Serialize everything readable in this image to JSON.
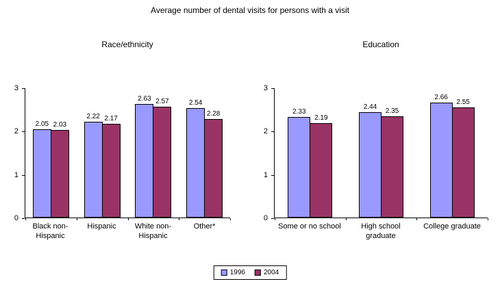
{
  "title": "Average number of dental visits for persons with a visit",
  "legend": {
    "entries": [
      {
        "label": "1996",
        "color": "#9999FF"
      },
      {
        "label": "2004",
        "color": "#993366"
      }
    ]
  },
  "chart_data": [
    {
      "type": "bar",
      "title": "Race/ethnicity",
      "categories": [
        "Black non-\nHispanic",
        "Hispanic",
        "White non-\nHispanic",
        "Other*"
      ],
      "series": [
        {
          "name": "1996",
          "color": "#9999FF",
          "values": [
            2.05,
            2.22,
            2.63,
            2.54
          ]
        },
        {
          "name": "2004",
          "color": "#993366",
          "values": [
            2.03,
            2.17,
            2.57,
            2.28
          ]
        }
      ],
      "ylim": [
        0,
        3
      ],
      "yticks": [
        0,
        1,
        2,
        3
      ],
      "grid": false,
      "value_labels": true,
      "legend_position": "bottom-center"
    },
    {
      "type": "bar",
      "title": "Education",
      "categories": [
        "Some or no school",
        "High school\ngraduate",
        "College graduate"
      ],
      "series": [
        {
          "name": "1996",
          "color": "#9999FF",
          "values": [
            2.33,
            2.44,
            2.66
          ]
        },
        {
          "name": "2004",
          "color": "#993366",
          "values": [
            2.19,
            2.35,
            2.55
          ]
        }
      ],
      "ylim": [
        0,
        3
      ],
      "yticks": [
        0,
        1,
        2,
        3
      ],
      "grid": false,
      "value_labels": true,
      "legend_position": "bottom-center"
    }
  ]
}
